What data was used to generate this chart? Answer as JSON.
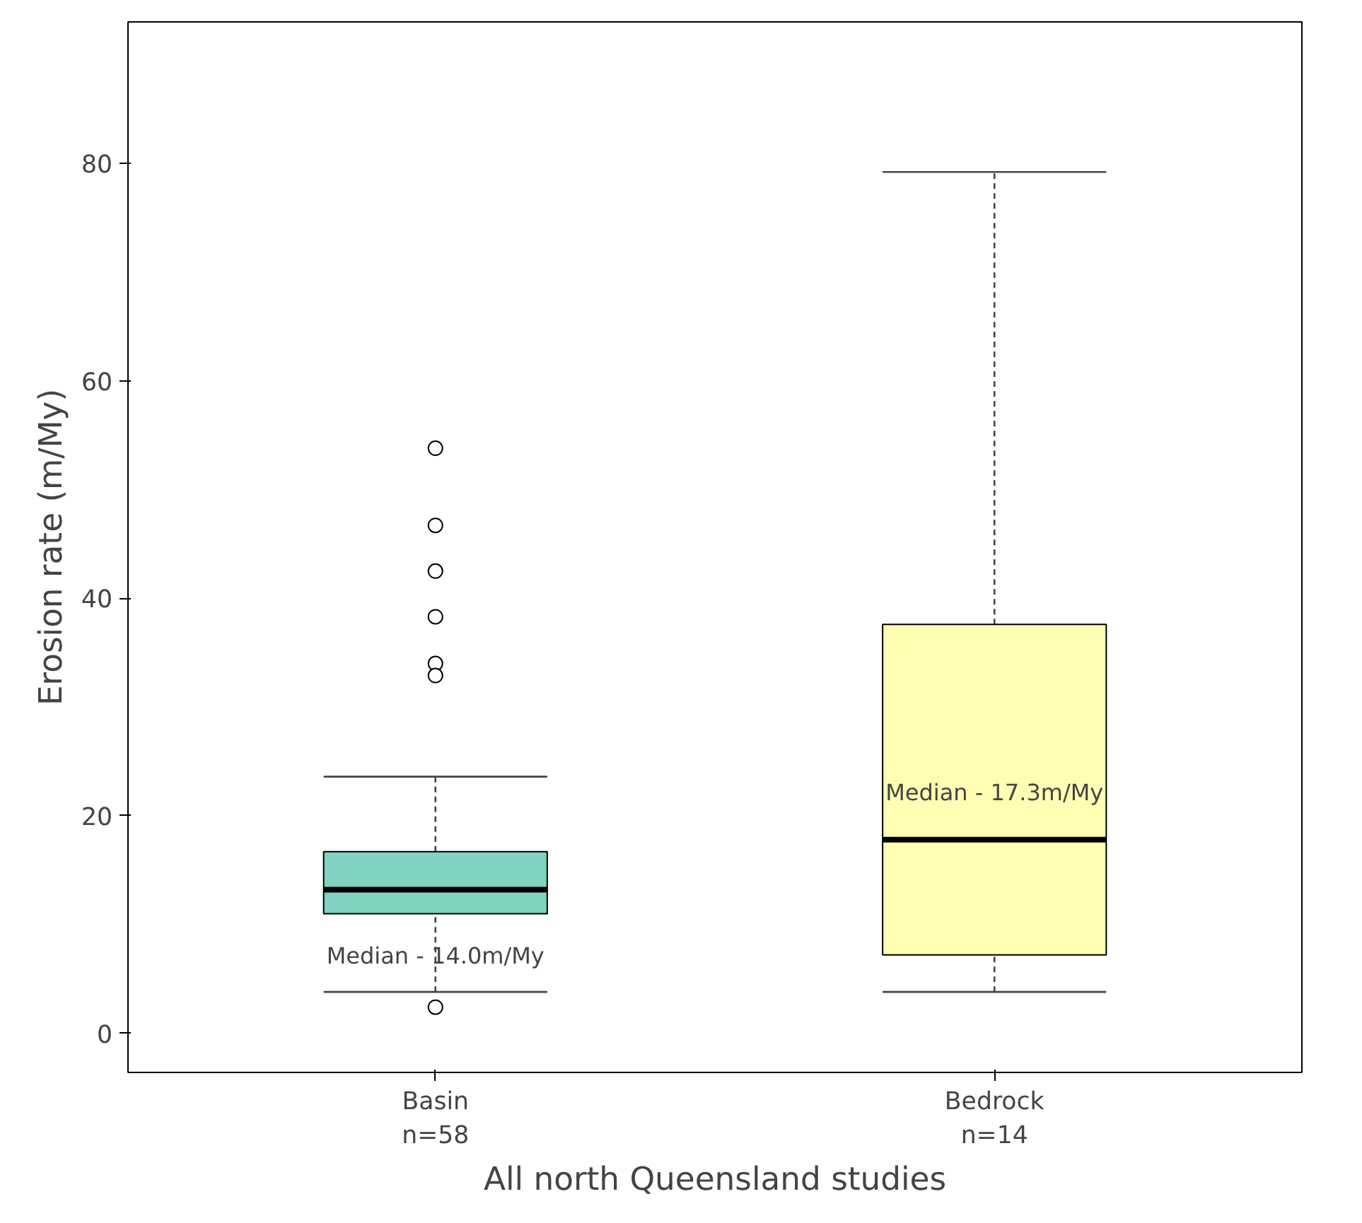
{
  "chart_data": {
    "type": "box",
    "xlabel": "All north Queensland studies",
    "ylabel": "Erosion rate (m/My)",
    "categories": [
      "Basin\nn=58",
      "Bedrock\nn=14"
    ],
    "colors": [
      "#7fd3c0",
      "#ffffb3"
    ],
    "boxes": [
      {
        "low": 3.8,
        "q1": 11.0,
        "median": 13.2,
        "q3": 16.7,
        "high": 23.6,
        "outliers": [
          53.8,
          46.7,
          42.5,
          38.3,
          34.0,
          32.9,
          2.4
        ]
      },
      {
        "low": 3.8,
        "q1": 7.2,
        "median": 17.8,
        "q3": 37.6,
        "high": 79.2
      }
    ],
    "annotations": [
      "Median - 14.0m/My",
      "Median - 17.3m/My"
    ],
    "ylim": [
      -3.6,
      93
    ],
    "yticks": [
      0,
      20,
      40,
      60,
      80
    ],
    "grid": false
  }
}
